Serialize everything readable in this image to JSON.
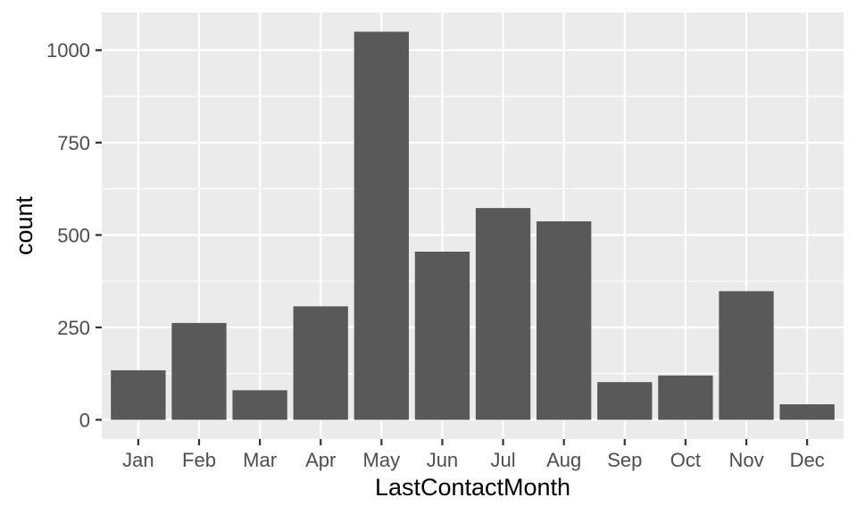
{
  "chart_data": {
    "type": "bar",
    "categories": [
      "Jan",
      "Feb",
      "Mar",
      "Apr",
      "May",
      "Jun",
      "Jul",
      "Aug",
      "Sep",
      "Oct",
      "Nov",
      "Dec"
    ],
    "values": [
      134,
      262,
      80,
      307,
      1050,
      455,
      573,
      537,
      102,
      120,
      348,
      42
    ],
    "xlabel": "LastContactMonth",
    "ylabel": "count",
    "yticks": [
      0,
      250,
      500,
      750,
      1000
    ],
    "ylim": [
      -52,
      1102
    ],
    "grid": true,
    "colors": {
      "panel": "#ebebeb",
      "grid": "#ffffff",
      "bar": "#595959",
      "tick": "#333333",
      "tick_text": "#4d4d4d"
    }
  }
}
